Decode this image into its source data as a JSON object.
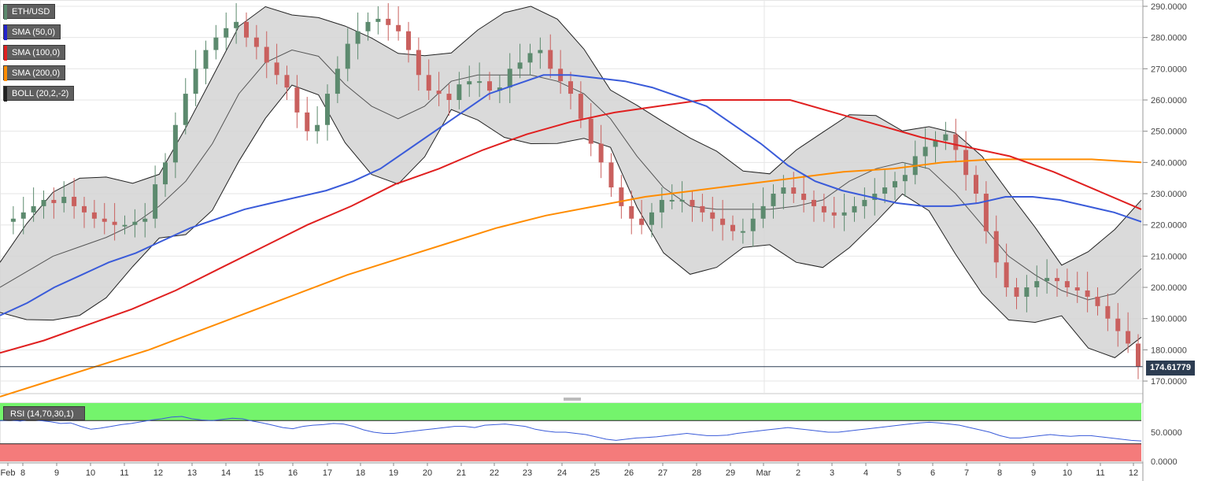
{
  "chart_data": {
    "type": "candlestick",
    "symbol": "ETH/USD",
    "legend": [
      {
        "label": "ETH/USD",
        "color": "#5c8a6e"
      },
      {
        "label": "SMA (50,0)",
        "color": "#2222cc"
      },
      {
        "label": "SMA (100,0)",
        "color": "#e02020"
      },
      {
        "label": "SMA (200,0)",
        "color": "#ff8c00"
      },
      {
        "label": "BOLL (20,2,-2)",
        "color": "#222222"
      }
    ],
    "last_price": "174.61779",
    "y_ticks": [
      "290.0000",
      "280.0000",
      "270.0000",
      "260.0000",
      "250.0000",
      "240.0000",
      "230.0000",
      "220.0000",
      "210.0000",
      "200.0000",
      "190.0000",
      "180.0000",
      "170.0000"
    ],
    "ylim": [
      165,
      292
    ],
    "x_ticks": [
      "Feb",
      "8",
      "9",
      "10",
      "11",
      "12",
      "13",
      "14",
      "15",
      "16",
      "17",
      "18",
      "19",
      "20",
      "21",
      "22",
      "23",
      "24",
      "25",
      "26",
      "27",
      "28",
      "29",
      "Mar",
      "2",
      "3",
      "4",
      "5",
      "6",
      "7",
      "8",
      "9",
      "10",
      "11",
      "12"
    ],
    "close_series": [
      221,
      222,
      224,
      226,
      228,
      227,
      229,
      226,
      224,
      222,
      221,
      220,
      220,
      221,
      222,
      233,
      240,
      252,
      262,
      270,
      276,
      280,
      283,
      285,
      280,
      277,
      272,
      268,
      264,
      256,
      250,
      252,
      262,
      270,
      278,
      282,
      285,
      286,
      284,
      282,
      276,
      268,
      263,
      262,
      260,
      265,
      266,
      266,
      263,
      264,
      270,
      272,
      275,
      276,
      270,
      266,
      262,
      254,
      246,
      240,
      232,
      226,
      222,
      220,
      224,
      228,
      228,
      228,
      226,
      224,
      222,
      220,
      218,
      218,
      222,
      226,
      230,
      232,
      230,
      228,
      226,
      224,
      223,
      224,
      226,
      228,
      230,
      232,
      234,
      236,
      242,
      245,
      247,
      249,
      244,
      236,
      230,
      218,
      208,
      200,
      197,
      200,
      202,
      203,
      202,
      200,
      199,
      197,
      194,
      190,
      186,
      182,
      174.6
    ],
    "sma50": [
      191,
      195,
      200,
      204,
      208,
      211,
      215,
      219,
      222,
      225,
      227,
      229,
      231,
      234,
      238,
      244,
      250,
      256,
      262,
      265,
      268,
      268,
      267,
      266,
      264,
      261,
      258,
      252,
      246,
      239,
      234,
      231,
      229,
      227,
      226,
      226,
      227,
      229,
      229,
      228,
      226,
      224,
      221
    ],
    "sma100": [
      179,
      183,
      188,
      193,
      199,
      206,
      213,
      220,
      226,
      233,
      238,
      244,
      249,
      253,
      256,
      258,
      260,
      260,
      260,
      256,
      252,
      248,
      245,
      242,
      237,
      231,
      225
    ],
    "sma200": [
      165,
      170,
      175,
      180,
      186,
      192,
      198,
      204,
      209,
      214,
      219,
      223,
      226,
      229,
      231,
      233,
      235,
      237,
      238,
      240,
      241,
      241,
      241,
      240
    ],
    "boll_mid": [
      200,
      205,
      210,
      213,
      216,
      220,
      226,
      234,
      246,
      262,
      272,
      276,
      274,
      265,
      258,
      254,
      258,
      266,
      268,
      268,
      268,
      266,
      262,
      254,
      242,
      232,
      226,
      225,
      225,
      225,
      226,
      228,
      234,
      238,
      240,
      238,
      230,
      220,
      210,
      204,
      199,
      196,
      198,
      206
    ],
    "rsi": {
      "label": "RSI (14,70,30,1)",
      "overbought": 70,
      "oversold": 30,
      "ticks": [
        "50.0000",
        "0.0000"
      ],
      "values": [
        70,
        71,
        69,
        72,
        70,
        68,
        65,
        66,
        60,
        55,
        57,
        60,
        63,
        65,
        68,
        71,
        73,
        76,
        77,
        73,
        71,
        70,
        72,
        74,
        73,
        69,
        66,
        62,
        58,
        56,
        60,
        62,
        63,
        65,
        64,
        60,
        54,
        50,
        48,
        48,
        50,
        52,
        54,
        56,
        58,
        60,
        60,
        58,
        62,
        63,
        64,
        62,
        60,
        55,
        52,
        50,
        50,
        48,
        46,
        42,
        38,
        36,
        38,
        40,
        41,
        42,
        44,
        46,
        48,
        46,
        44,
        44,
        45,
        48,
        50,
        52,
        54,
        56,
        58,
        56,
        54,
        52,
        50,
        50,
        52,
        54,
        56,
        58,
        60,
        62,
        64,
        66,
        67,
        66,
        64,
        62,
        58,
        54,
        50,
        44,
        40,
        40,
        42,
        44,
        46,
        44,
        43,
        44,
        44,
        42,
        40,
        38,
        36,
        35
      ]
    }
  }
}
